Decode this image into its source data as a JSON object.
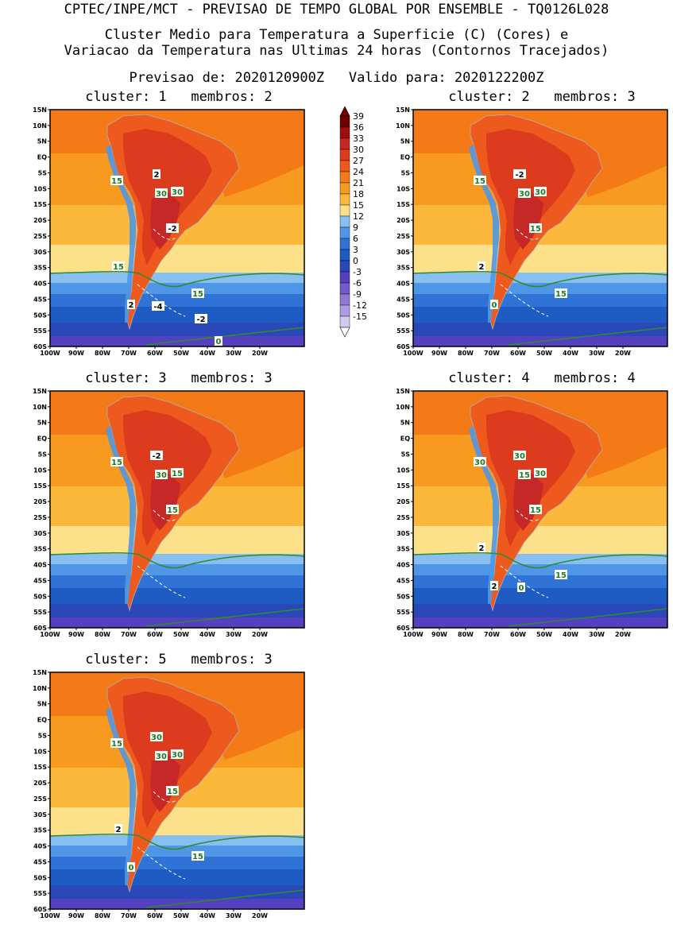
{
  "header": {
    "line1": "CPTEC/INPE/MCT - PREVISAO DE TEMPO GLOBAL POR ENSEMBLE - TQ0126L028",
    "line2": "Cluster Medio para Temperatura a Superficie (C) (Cores) e",
    "line3": "Variacao da Temperatura nas Ultimas 24 horas (Contornos Tracejados)",
    "line4": "Previsao de: 2020120900Z   Valido para: 2020122200Z"
  },
  "map": {
    "lat_labels": [
      "15N",
      "10N",
      "5N",
      "EQ",
      "5S",
      "10S",
      "15S",
      "20S",
      "25S",
      "30S",
      "35S",
      "40S",
      "45S",
      "50S",
      "55S",
      "60S"
    ],
    "lon_labels": [
      "100W",
      "90W",
      "80W",
      "70W",
      "60W",
      "50W",
      "40W",
      "30W",
      "20W"
    ]
  },
  "colorbar": {
    "levels": [
      "39",
      "36",
      "33",
      "30",
      "27",
      "24",
      "21",
      "18",
      "15",
      "12",
      "9",
      "6",
      "3",
      "0",
      "-3",
      "-6",
      "-9",
      "-12",
      "-15"
    ],
    "colors": [
      "#6e0000",
      "#a00d0d",
      "#c62828",
      "#dd3b1d",
      "#ee5a1d",
      "#f47a17",
      "#f89a1f",
      "#fbb83a",
      "#fde18a",
      "#87bff0",
      "#4f97e6",
      "#2f73d6",
      "#1e5bc2",
      "#2b48b8",
      "#5540c0",
      "#7459cc",
      "#9079d6",
      "#ae9ce2",
      "#d3c8f0"
    ]
  },
  "panels": [
    {
      "title": "cluster: 1   membros: 2",
      "labels": [
        {
          "t": "15",
          "c": "green"
        },
        {
          "t": "30",
          "c": "green"
        },
        {
          "t": "30",
          "c": "green"
        },
        {
          "t": "2",
          "c": "black"
        },
        {
          "t": "-2",
          "c": "black"
        },
        {
          "t": "15",
          "c": "green"
        },
        {
          "t": "15",
          "c": "green"
        },
        {
          "t": "2",
          "c": "black"
        },
        {
          "t": "-4",
          "c": "black"
        },
        {
          "t": "-2",
          "c": "black"
        },
        {
          "t": "0",
          "c": "green"
        }
      ]
    },
    {
      "title": "cluster: 2   membros: 3",
      "labels": [
        {
          "t": "15",
          "c": "green"
        },
        {
          "t": "30",
          "c": "green"
        },
        {
          "t": "30",
          "c": "green"
        },
        {
          "t": "-2",
          "c": "black"
        },
        {
          "t": "15",
          "c": "green"
        },
        {
          "t": "2",
          "c": "black"
        },
        {
          "t": "15",
          "c": "green"
        },
        {
          "t": "0",
          "c": "green"
        }
      ]
    },
    {
      "title": "cluster: 3   membros: 3",
      "labels": [
        {
          "t": "15",
          "c": "green"
        },
        {
          "t": "30",
          "c": "green"
        },
        {
          "t": "15",
          "c": "green"
        },
        {
          "t": "-2",
          "c": "black"
        },
        {
          "t": "15",
          "c": "green"
        }
      ]
    },
    {
      "title": "cluster: 4   membros: 4",
      "labels": [
        {
          "t": "30",
          "c": "green"
        },
        {
          "t": "15",
          "c": "green"
        },
        {
          "t": "30",
          "c": "green"
        },
        {
          "t": "30",
          "c": "green"
        },
        {
          "t": "15",
          "c": "green"
        },
        {
          "t": "2",
          "c": "black"
        },
        {
          "t": "15",
          "c": "green"
        },
        {
          "t": "2",
          "c": "black"
        },
        {
          "t": "0",
          "c": "green"
        }
      ]
    },
    {
      "title": "cluster: 5   membros: 3",
      "labels": [
        {
          "t": "15",
          "c": "green"
        },
        {
          "t": "30",
          "c": "green"
        },
        {
          "t": "30",
          "c": "green"
        },
        {
          "t": "30",
          "c": "green"
        },
        {
          "t": "15",
          "c": "green"
        },
        {
          "t": "2",
          "c": "black"
        },
        {
          "t": "15",
          "c": "green"
        },
        {
          "t": "0",
          "c": "green"
        }
      ]
    }
  ]
}
